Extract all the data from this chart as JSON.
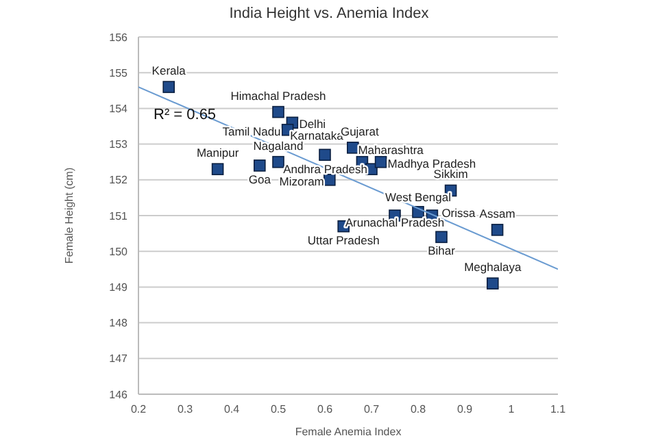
{
  "chart_data": {
    "type": "scatter",
    "title": "India Height vs. Anemia Index",
    "xlabel": "Female Anemia Index",
    "ylabel": "Female Height (cm)",
    "series": [
      {
        "color": "#1f4a8a",
        "x": [
          0.265,
          0.5,
          0.53,
          0.52,
          0.37,
          0.46,
          0.5,
          0.6,
          0.66,
          0.61,
          0.68,
          0.7,
          0.72,
          0.87,
          0.8,
          0.83,
          0.75,
          0.64,
          0.97,
          0.85,
          0.96
        ],
        "values": [
          154.6,
          153.9,
          153.6,
          153.4,
          152.3,
          152.4,
          152.5,
          152.7,
          152.9,
          152.0,
          152.5,
          152.3,
          152.5,
          151.7,
          151.1,
          151.0,
          151.0,
          150.7,
          150.6,
          150.4,
          149.1
        ]
      },
      {
        "type": "line",
        "marker": "none",
        "color": "#6a9bd1",
        "x": [
          0.2,
          1.1
        ],
        "values": [
          154.6,
          149.5
        ]
      }
    ],
    "annotations": [
      {
        "text": "Kerala",
        "x": 0.265,
        "y": 154.6
      },
      {
        "text": "Himachal Pradesh",
        "x": 0.5,
        "y": 153.9
      },
      {
        "text": "Delhi",
        "x": 0.53,
        "y": 153.6
      },
      {
        "text": "Tamil Nadu",
        "x": 0.52,
        "y": 153.4
      },
      {
        "text": "Manipur",
        "x": 0.37,
        "y": 152.3
      },
      {
        "text": "Goa",
        "x": 0.46,
        "y": 152.4
      },
      {
        "text": "Nagaland",
        "x": 0.5,
        "y": 152.5
      },
      {
        "text": "Karnataka",
        "x": 0.6,
        "y": 152.7
      },
      {
        "text": "Gujarat",
        "x": 0.66,
        "y": 152.9
      },
      {
        "text": "Mizoram",
        "x": 0.61,
        "y": 152.0
      },
      {
        "text": "Maharashtra",
        "x": 0.68,
        "y": 152.5
      },
      {
        "text": "Andhra Pradesh",
        "x": 0.7,
        "y": 152.3
      },
      {
        "text": "Madhya Pradesh",
        "x": 0.72,
        "y": 152.5
      },
      {
        "text": "Sikkim",
        "x": 0.87,
        "y": 151.7
      },
      {
        "text": "West Bengal",
        "x": 0.8,
        "y": 151.1
      },
      {
        "text": "Orissa",
        "x": 0.83,
        "y": 151.0
      },
      {
        "text": "Arunachal Pradesh",
        "x": 0.75,
        "y": 151.0
      },
      {
        "text": "Uttar Pradesh",
        "x": 0.64,
        "y": 150.7
      },
      {
        "text": "Assam",
        "x": 0.97,
        "y": 150.6
      },
      {
        "text": "Bihar",
        "x": 0.85,
        "y": 150.4
      },
      {
        "text": "Meghalaya",
        "x": 0.96,
        "y": 149.1
      },
      "R² = 0.65"
    ],
    "xlim": [
      0.2,
      1.1
    ],
    "xticks": [
      0.2,
      0.3,
      0.4,
      0.5,
      0.6,
      0.7,
      0.8,
      0.9,
      1,
      1.1
    ],
    "ylim": [
      146,
      156
    ],
    "yticks": [
      146,
      147,
      148,
      149,
      150,
      151,
      152,
      153,
      154,
      155,
      156
    ],
    "grid": "y",
    "legend": false,
    "marker": "square"
  }
}
